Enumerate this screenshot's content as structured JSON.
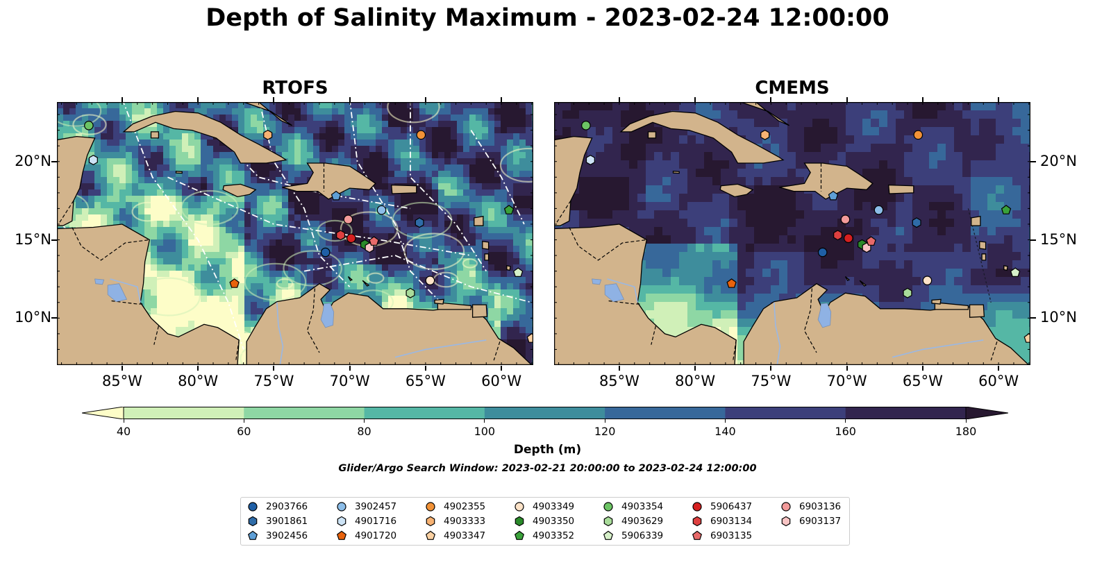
{
  "title": "Depth of Salinity Maximum - 2023-02-24 12:00:00",
  "panels": [
    {
      "title": "RTOFS"
    },
    {
      "title": "CMEMS"
    }
  ],
  "map": {
    "lon_range": [
      -89.3,
      -57.9
    ],
    "lat_range": [
      7.0,
      23.8
    ],
    "lon_ticks": [
      "85°W",
      "80°W",
      "75°W",
      "70°W",
      "65°W",
      "60°W"
    ],
    "lat_ticks": [
      "20°N",
      "15°N",
      "10°N"
    ],
    "land_color": "#d2b48c",
    "lake_color": "#8fb2e4"
  },
  "colorbar": {
    "label": "Depth (m)",
    "ticks": [
      "40",
      "60",
      "80",
      "100",
      "120",
      "140",
      "160",
      "180"
    ],
    "colors": [
      "#fdfdc8",
      "#d0f0b8",
      "#8ed7a4",
      "#55b7a5",
      "#3e8d9c",
      "#37689a",
      "#3c3f7a",
      "#32254e",
      "#271830"
    ],
    "extend": "both"
  },
  "search_window": "Glider/Argo Search Window: 2023-02-21 20:00:00 to 2023-02-24 12:00:00",
  "legend": [
    {
      "id": "2903766",
      "marker": "circle",
      "color": "#1f5fa6"
    },
    {
      "id": "3901861",
      "marker": "hexagon",
      "color": "#2f6ca8"
    },
    {
      "id": "3902456",
      "marker": "pentagon",
      "color": "#5e9fd6"
    },
    {
      "id": "3902457",
      "marker": "circle",
      "color": "#8cbde8"
    },
    {
      "id": "4901716",
      "marker": "hexagon",
      "color": "#cde3f5"
    },
    {
      "id": "4901720",
      "marker": "pentagon",
      "color": "#e8620c"
    },
    {
      "id": "4902355",
      "marker": "circle",
      "color": "#f29237"
    },
    {
      "id": "4903333",
      "marker": "hexagon",
      "color": "#f7b273"
    },
    {
      "id": "4903347",
      "marker": "pentagon",
      "color": "#fbd1a2"
    },
    {
      "id": "4903349",
      "marker": "circle",
      "color": "#fde3c8"
    },
    {
      "id": "4903350",
      "marker": "hexagon",
      "color": "#2a8a2a"
    },
    {
      "id": "4903352",
      "marker": "pentagon",
      "color": "#3aa23a"
    },
    {
      "id": "4903354",
      "marker": "circle",
      "color": "#6cc464"
    },
    {
      "id": "4903629",
      "marker": "hexagon",
      "color": "#a9dc9a"
    },
    {
      "id": "5906339",
      "marker": "pentagon",
      "color": "#d6f0c9"
    },
    {
      "id": "5906437",
      "marker": "circle",
      "color": "#d62020"
    },
    {
      "id": "6903134",
      "marker": "hexagon",
      "color": "#de4040"
    },
    {
      "id": "6903135",
      "marker": "pentagon",
      "color": "#e86a6a"
    },
    {
      "id": "6903136",
      "marker": "circle",
      "color": "#f29a9a"
    },
    {
      "id": "6903137",
      "marker": "hexagon",
      "color": "#f8c4c4"
    }
  ],
  "floats": [
    {
      "id": "4903354",
      "lon": -87.2,
      "lat": 22.3
    },
    {
      "id": "4901716",
      "lon": -86.9,
      "lat": 20.1
    },
    {
      "id": "4903333",
      "lon": -75.4,
      "lat": 21.7
    },
    {
      "id": "4902355",
      "lon": -65.3,
      "lat": 21.7
    },
    {
      "id": "3902456",
      "lon": -70.9,
      "lat": 17.8
    },
    {
      "id": "3902457",
      "lon": -67.9,
      "lat": 16.9
    },
    {
      "id": "3901861",
      "lon": -65.4,
      "lat": 16.1
    },
    {
      "id": "6903136",
      "lon": -70.1,
      "lat": 16.3
    },
    {
      "id": "6903134",
      "lon": -70.6,
      "lat": 15.3
    },
    {
      "id": "5906437",
      "lon": -69.9,
      "lat": 15.1
    },
    {
      "id": "4903350",
      "lon": -69.0,
      "lat": 14.7
    },
    {
      "id": "6903137",
      "lon": -68.7,
      "lat": 14.5
    },
    {
      "id": "6903135",
      "lon": -68.4,
      "lat": 14.9
    },
    {
      "id": "2903766",
      "lon": -71.6,
      "lat": 14.2
    },
    {
      "id": "4901720",
      "lon": -77.6,
      "lat": 12.2
    },
    {
      "id": "4903349",
      "lon": -64.7,
      "lat": 12.4
    },
    {
      "id": "4903629",
      "lon": -66.0,
      "lat": 11.6
    },
    {
      "id": "4903352",
      "lon": -59.5,
      "lat": 16.9
    },
    {
      "id": "5906339",
      "lon": -58.9,
      "lat": 12.9
    },
    {
      "id": "4903347",
      "lon": -58.0,
      "lat": 8.7
    }
  ]
}
